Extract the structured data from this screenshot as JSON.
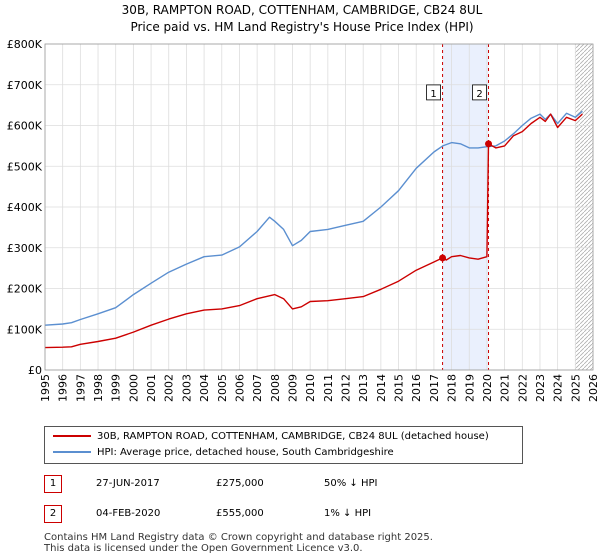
{
  "chart_data": {
    "type": "line",
    "title": "30B, RAMPTON ROAD, COTTENHAM, CAMBRIDGE, CB24 8UL",
    "subtitle": "Price paid vs. HM Land Registry's House Price Index (HPI)",
    "xlim": [
      1995,
      2026
    ],
    "ylim": [
      0,
      800000
    ],
    "x_ticks": [
      "1995",
      "1996",
      "1997",
      "1998",
      "1999",
      "2000",
      "2001",
      "2002",
      "2003",
      "2004",
      "2005",
      "2006",
      "2007",
      "2008",
      "2009",
      "2010",
      "2011",
      "2012",
      "2013",
      "2014",
      "2015",
      "2016",
      "2017",
      "2018",
      "2019",
      "2020",
      "2021",
      "2022",
      "2023",
      "2024",
      "2025",
      "2026"
    ],
    "y_ticks": [
      {
        "value": 0,
        "label": "£0"
      },
      {
        "value": 100000,
        "label": "£100K"
      },
      {
        "value": 200000,
        "label": "£200K"
      },
      {
        "value": 300000,
        "label": "£300K"
      },
      {
        "value": 400000,
        "label": "£400K"
      },
      {
        "value": 500000,
        "label": "£500K"
      },
      {
        "value": 600000,
        "label": "£600K"
      },
      {
        "value": 700000,
        "label": "£700K"
      },
      {
        "value": 800000,
        "label": "£800K"
      }
    ],
    "highlight_span": [
      2017.49,
      2020.09
    ],
    "hatch_from": 2025.0,
    "series": [
      {
        "name": "30B, RAMPTON ROAD, COTTENHAM, CAMBRIDGE, CB24 8UL (detached house)",
        "color": "#cc0000",
        "points": [
          [
            1995.0,
            55000
          ],
          [
            1996.0,
            56000
          ],
          [
            1996.5,
            57000
          ],
          [
            1997.0,
            63000
          ],
          [
            1998.0,
            70000
          ],
          [
            1999.0,
            78000
          ],
          [
            2000.0,
            93000
          ],
          [
            2001.0,
            110000
          ],
          [
            2002.0,
            125000
          ],
          [
            2003.0,
            138000
          ],
          [
            2004.0,
            147000
          ],
          [
            2005.0,
            150000
          ],
          [
            2006.0,
            158000
          ],
          [
            2007.0,
            175000
          ],
          [
            2008.0,
            185000
          ],
          [
            2008.5,
            175000
          ],
          [
            2009.0,
            150000
          ],
          [
            2009.5,
            155000
          ],
          [
            2010.0,
            168000
          ],
          [
            2011.0,
            170000
          ],
          [
            2012.0,
            175000
          ],
          [
            2013.0,
            180000
          ],
          [
            2014.0,
            198000
          ],
          [
            2015.0,
            218000
          ],
          [
            2016.0,
            245000
          ],
          [
            2017.0,
            265000
          ],
          [
            2017.49,
            275000
          ],
          [
            2017.7,
            270000
          ],
          [
            2018.0,
            278000
          ],
          [
            2018.5,
            281000
          ],
          [
            2019.0,
            275000
          ],
          [
            2019.5,
            272000
          ],
          [
            2020.0,
            278000
          ],
          [
            2020.09,
            555000
          ],
          [
            2020.5,
            545000
          ],
          [
            2021.0,
            550000
          ],
          [
            2021.5,
            575000
          ],
          [
            2022.0,
            585000
          ],
          [
            2022.5,
            605000
          ],
          [
            2023.0,
            620000
          ],
          [
            2023.3,
            610000
          ],
          [
            2023.6,
            628000
          ],
          [
            2024.0,
            595000
          ],
          [
            2024.5,
            620000
          ],
          [
            2025.0,
            612000
          ],
          [
            2025.4,
            628000
          ]
        ]
      },
      {
        "name": "HPI: Average price, detached house, South Cambridgeshire",
        "color": "#5b8fd0",
        "points": [
          [
            1995.0,
            110000
          ],
          [
            1996.0,
            113000
          ],
          [
            1996.5,
            116000
          ],
          [
            1997.0,
            124000
          ],
          [
            1998.0,
            138000
          ],
          [
            1999.0,
            153000
          ],
          [
            2000.0,
            185000
          ],
          [
            2001.0,
            213000
          ],
          [
            2002.0,
            240000
          ],
          [
            2003.0,
            260000
          ],
          [
            2004.0,
            278000
          ],
          [
            2005.0,
            282000
          ],
          [
            2006.0,
            302000
          ],
          [
            2007.0,
            340000
          ],
          [
            2007.7,
            375000
          ],
          [
            2008.0,
            365000
          ],
          [
            2008.5,
            345000
          ],
          [
            2009.0,
            305000
          ],
          [
            2009.5,
            318000
          ],
          [
            2010.0,
            340000
          ],
          [
            2011.0,
            345000
          ],
          [
            2012.0,
            355000
          ],
          [
            2013.0,
            365000
          ],
          [
            2014.0,
            400000
          ],
          [
            2015.0,
            440000
          ],
          [
            2016.0,
            495000
          ],
          [
            2017.0,
            535000
          ],
          [
            2017.5,
            550000
          ],
          [
            2018.0,
            558000
          ],
          [
            2018.5,
            555000
          ],
          [
            2019.0,
            545000
          ],
          [
            2019.5,
            545000
          ],
          [
            2020.0,
            548000
          ],
          [
            2020.5,
            550000
          ],
          [
            2021.0,
            562000
          ],
          [
            2021.5,
            580000
          ],
          [
            2022.0,
            600000
          ],
          [
            2022.5,
            618000
          ],
          [
            2023.0,
            628000
          ],
          [
            2023.3,
            615000
          ],
          [
            2023.6,
            628000
          ],
          [
            2024.0,
            605000
          ],
          [
            2024.5,
            630000
          ],
          [
            2025.0,
            620000
          ],
          [
            2025.4,
            635000
          ]
        ]
      }
    ],
    "markers": [
      {
        "label": "1",
        "x": 2017.49,
        "y": 275000,
        "box_y": 680000
      },
      {
        "label": "2",
        "x": 2020.09,
        "y": 555000,
        "box_y": 680000
      }
    ]
  },
  "legend": {
    "items": [
      {
        "label": "30B, RAMPTON ROAD, COTTENHAM, CAMBRIDGE, CB24 8UL (detached house)",
        "color": "#cc0000"
      },
      {
        "label": "HPI: Average price, detached house, South Cambridgeshire",
        "color": "#5b8fd0"
      }
    ]
  },
  "transactions": [
    {
      "num": "1",
      "date": "27-JUN-2017",
      "price": "£275,000",
      "hpi": "50% ↓ HPI"
    },
    {
      "num": "2",
      "date": "04-FEB-2020",
      "price": "£555,000",
      "hpi": "1% ↓ HPI"
    }
  ],
  "footer": {
    "line1": "Contains HM Land Registry data © Crown copyright and database right 2025.",
    "line2": "This data is licensed under the Open Government Licence v3.0."
  }
}
